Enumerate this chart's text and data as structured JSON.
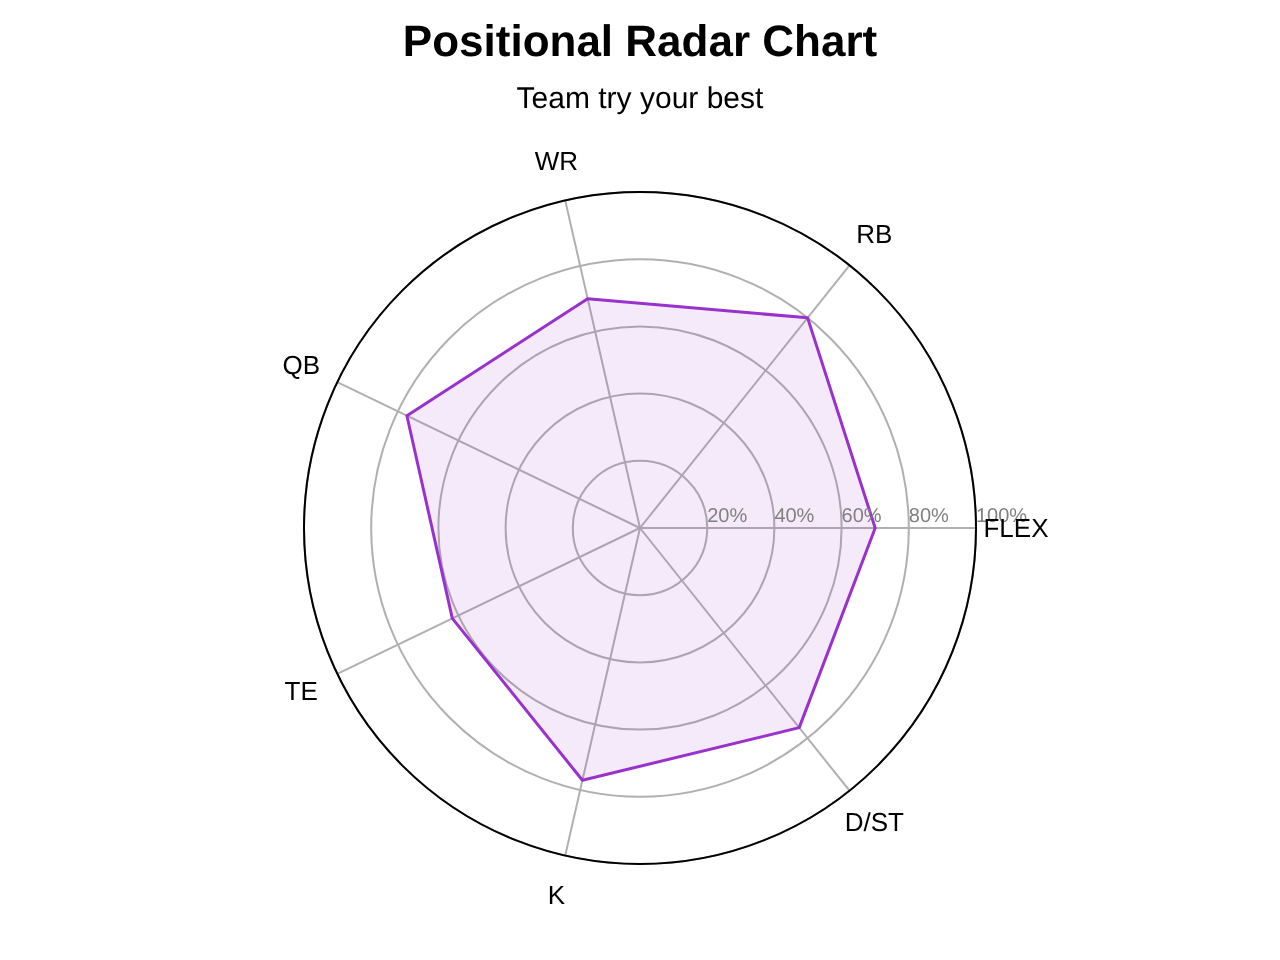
{
  "chart_data": {
    "type": "radar",
    "title": "Positional Radar Chart",
    "subtitle": "Team try your best",
    "categories": [
      "WR",
      "RB",
      "FLEX",
      "D/ST",
      "K",
      "TE",
      "QB"
    ],
    "series": [
      {
        "color": "#9932cc",
        "values": [
          70,
          80,
          70,
          76,
          77,
          62,
          77
        ]
      }
    ],
    "ylim": [
      0,
      100
    ],
    "yticks": [
      {
        "value": 20,
        "label": "20%"
      },
      {
        "value": 40,
        "label": "40%"
      },
      {
        "value": 60,
        "label": "60%"
      },
      {
        "value": 80,
        "label": "80%"
      },
      {
        "value": 100,
        "label": "100%"
      }
    ],
    "grid": true
  }
}
